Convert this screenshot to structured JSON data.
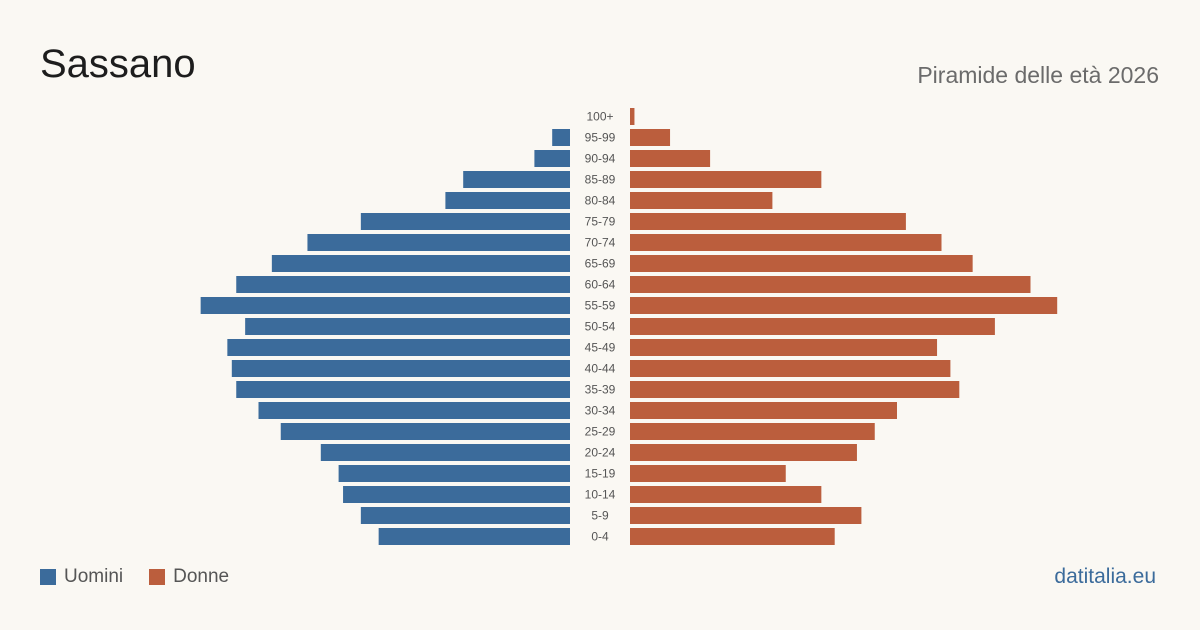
{
  "header": {
    "title": "Sassano",
    "subtitle": "Piramide delle età 2026"
  },
  "legend": {
    "men_label": "Uomini",
    "women_label": "Donne"
  },
  "brand": "datitalia.eu",
  "colors": {
    "men": "#3b6b9b",
    "women": "#bb5e3d",
    "axis_label": "#555555"
  },
  "chart_data": {
    "type": "bar",
    "orientation": "horizontal",
    "categories": [
      "100+",
      "95-99",
      "90-94",
      "85-89",
      "80-84",
      "75-79",
      "70-74",
      "65-69",
      "60-64",
      "55-59",
      "50-54",
      "45-49",
      "40-44",
      "35-39",
      "30-34",
      "25-29",
      "20-24",
      "15-19",
      "10-14",
      "5-9",
      "0-4"
    ],
    "series": [
      {
        "name": "Uomini",
        "values": [
          0,
          4,
          8,
          24,
          28,
          47,
          59,
          67,
          75,
          83,
          73,
          77,
          76,
          75,
          70,
          65,
          56,
          52,
          51,
          47,
          43
        ]
      },
      {
        "name": "Donne",
        "values": [
          1,
          9,
          18,
          43,
          32,
          62,
          70,
          77,
          90,
          96,
          82,
          69,
          72,
          74,
          60,
          55,
          51,
          35,
          43,
          52,
          46
        ]
      }
    ],
    "xlim": [
      0,
      100
    ],
    "grid": false,
    "legend_position": "bottom-left"
  }
}
